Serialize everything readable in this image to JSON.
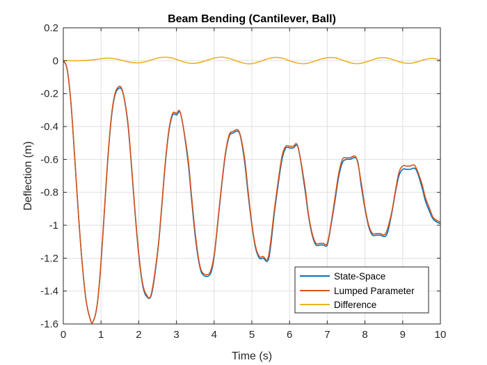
{
  "chart_data": {
    "type": "line",
    "title": "Beam Bending (Cantilever, Ball)",
    "xlabel": "Time (s)",
    "ylabel": "Deflection (m)",
    "xlim": [
      0,
      10
    ],
    "ylim": [
      -1.6,
      0.2
    ],
    "xticks": [
      0,
      1,
      2,
      3,
      4,
      5,
      6,
      7,
      8,
      9,
      10
    ],
    "yticks": [
      0.2,
      0,
      -0.2,
      -0.4,
      -0.6,
      -0.8,
      -1,
      -1.2,
      -1.4,
      -1.6
    ],
    "xtick_labels": [
      "0",
      "1",
      "2",
      "3",
      "4",
      "5",
      "6",
      "7",
      "8",
      "9",
      "10"
    ],
    "ytick_labels": [
      "0.2",
      "0",
      "-0.2",
      "-0.4",
      "-0.6",
      "-0.8",
      "-1",
      "-1.2",
      "-1.4",
      "-1.6"
    ],
    "grid": true,
    "legend_position": "bottom-right",
    "series": [
      {
        "name": "State-Space",
        "color": "#0072BD",
        "x": [
          0,
          0.1,
          0.2,
          0.3,
          0.4,
          0.5,
          0.6,
          0.7,
          0.78,
          0.9,
          1.0,
          1.1,
          1.2,
          1.3,
          1.4,
          1.56,
          1.7,
          1.8,
          1.9,
          2.0,
          2.1,
          2.2,
          2.34,
          2.5,
          2.6,
          2.7,
          2.8,
          2.9,
          3.0,
          3.12,
          3.3,
          3.4,
          3.5,
          3.6,
          3.7,
          3.89,
          4.0,
          4.1,
          4.2,
          4.3,
          4.4,
          4.5,
          4.67,
          4.8,
          4.9,
          5.0,
          5.1,
          5.2,
          5.3,
          5.45,
          5.6,
          5.7,
          5.8,
          5.9,
          6.0,
          6.1,
          6.23,
          6.4,
          6.5,
          6.6,
          6.7,
          6.8,
          6.9,
          7.0,
          7.1,
          7.2,
          7.3,
          7.4,
          7.5,
          7.6,
          7.79,
          7.9,
          8.0,
          8.1,
          8.2,
          8.3,
          8.4,
          8.57,
          8.7,
          8.8,
          8.9,
          9.0,
          9.1,
          9.2,
          9.35,
          9.5,
          9.6,
          9.7,
          9.8,
          9.9,
          10.0
        ],
        "y": [
          0,
          -0.05,
          -0.25,
          -0.58,
          -0.93,
          -1.23,
          -1.45,
          -1.56,
          -1.59,
          -1.48,
          -1.23,
          -0.88,
          -0.54,
          -0.3,
          -0.19,
          -0.18,
          -0.36,
          -0.62,
          -0.92,
          -1.18,
          -1.36,
          -1.43,
          -1.42,
          -1.17,
          -0.92,
          -0.64,
          -0.43,
          -0.33,
          -0.33,
          -0.33,
          -0.6,
          -0.84,
          -1.07,
          -1.23,
          -1.3,
          -1.3,
          -1.19,
          -0.98,
          -0.76,
          -0.57,
          -0.46,
          -0.44,
          -0.44,
          -0.6,
          -0.81,
          -1.0,
          -1.14,
          -1.2,
          -1.2,
          -1.2,
          -0.92,
          -0.75,
          -0.6,
          -0.53,
          -0.53,
          -0.53,
          -0.53,
          -0.77,
          -0.94,
          -1.06,
          -1.12,
          -1.12,
          -1.12,
          -1.12,
          -1.0,
          -0.86,
          -0.71,
          -0.62,
          -0.6,
          -0.6,
          -0.6,
          -0.76,
          -0.9,
          -1.01,
          -1.06,
          -1.06,
          -1.06,
          -1.06,
          -0.94,
          -0.81,
          -0.7,
          -0.66,
          -0.66,
          -0.66,
          -0.66,
          -0.76,
          -0.85,
          -0.91,
          -0.96,
          -0.98,
          -0.99
        ]
      },
      {
        "name": "Lumped Parameter",
        "color": "#D95319",
        "x": [
          0,
          0.1,
          0.2,
          0.3,
          0.4,
          0.5,
          0.6,
          0.7,
          0.78,
          0.9,
          1.0,
          1.1,
          1.2,
          1.3,
          1.4,
          1.55,
          1.7,
          1.8,
          1.9,
          2.0,
          2.1,
          2.2,
          2.33,
          2.5,
          2.6,
          2.7,
          2.8,
          2.9,
          3.0,
          3.11,
          3.3,
          3.4,
          3.5,
          3.6,
          3.7,
          3.88,
          4.0,
          4.1,
          4.2,
          4.3,
          4.4,
          4.5,
          4.66,
          4.8,
          4.9,
          5.0,
          5.1,
          5.2,
          5.3,
          5.44,
          5.6,
          5.7,
          5.8,
          5.9,
          6.0,
          6.1,
          6.22,
          6.4,
          6.5,
          6.6,
          6.7,
          6.8,
          6.9,
          7.0,
          7.1,
          7.2,
          7.3,
          7.4,
          7.5,
          7.6,
          7.77,
          7.9,
          8.0,
          8.1,
          8.2,
          8.3,
          8.4,
          8.55,
          8.7,
          8.8,
          8.9,
          9.0,
          9.1,
          9.2,
          9.33,
          9.5,
          9.6,
          9.7,
          9.8,
          9.9,
          10.0
        ],
        "y": [
          0,
          -0.05,
          -0.25,
          -0.58,
          -0.93,
          -1.23,
          -1.45,
          -1.56,
          -1.59,
          -1.48,
          -1.22,
          -0.87,
          -0.53,
          -0.29,
          -0.18,
          -0.17,
          -0.35,
          -0.61,
          -0.91,
          -1.17,
          -1.35,
          -1.42,
          -1.42,
          -1.16,
          -0.91,
          -0.63,
          -0.42,
          -0.32,
          -0.32,
          -0.32,
          -0.58,
          -0.82,
          -1.05,
          -1.22,
          -1.29,
          -1.29,
          -1.18,
          -0.97,
          -0.75,
          -0.56,
          -0.45,
          -0.43,
          -0.43,
          -0.58,
          -0.79,
          -0.99,
          -1.13,
          -1.19,
          -1.19,
          -1.19,
          -0.9,
          -0.73,
          -0.58,
          -0.52,
          -0.52,
          -0.52,
          -0.52,
          -0.75,
          -0.93,
          -1.05,
          -1.11,
          -1.11,
          -1.11,
          -1.11,
          -0.99,
          -0.84,
          -0.69,
          -0.6,
          -0.59,
          -0.59,
          -0.59,
          -0.74,
          -0.89,
          -1.0,
          -1.05,
          -1.05,
          -1.05,
          -1.05,
          -0.93,
          -0.8,
          -0.68,
          -0.64,
          -0.64,
          -0.64,
          -0.64,
          -0.74,
          -0.83,
          -0.89,
          -0.95,
          -0.97,
          -0.98
        ]
      },
      {
        "name": "Difference",
        "color": "#EDB120",
        "x": [
          0,
          0.1,
          0.2,
          0.4,
          0.6,
          0.8,
          1.0,
          1.2,
          1.4,
          1.6,
          1.8,
          2.0,
          2.2,
          2.4,
          2.6,
          2.8,
          3.0,
          3.2,
          3.4,
          3.6,
          3.8,
          4.0,
          4.2,
          4.4,
          4.6,
          4.8,
          5.0,
          5.2,
          5.4,
          5.6,
          5.8,
          6.0,
          6.2,
          6.4,
          6.6,
          6.8,
          7.0,
          7.2,
          7.4,
          7.6,
          7.8,
          8.0,
          8.2,
          8.4,
          8.6,
          8.8,
          9.0,
          9.2,
          9.4,
          9.6,
          9.8,
          10.0
        ],
        "y": [
          0,
          0.0,
          0.0,
          0.0,
          0.002,
          0.006,
          0.012,
          0.016,
          0.01,
          0.0,
          -0.01,
          -0.013,
          -0.005,
          0.01,
          0.02,
          0.02,
          0.008,
          -0.008,
          -0.016,
          -0.012,
          0.002,
          0.016,
          0.022,
          0.014,
          -0.002,
          -0.016,
          -0.018,
          -0.006,
          0.01,
          0.02,
          0.016,
          0.0,
          -0.014,
          -0.018,
          -0.008,
          0.008,
          0.018,
          0.018,
          0.004,
          -0.012,
          -0.018,
          -0.01,
          0.006,
          0.018,
          0.016,
          0.002,
          -0.012,
          -0.016,
          -0.006,
          0.008,
          0.014,
          0.004
        ]
      }
    ]
  }
}
